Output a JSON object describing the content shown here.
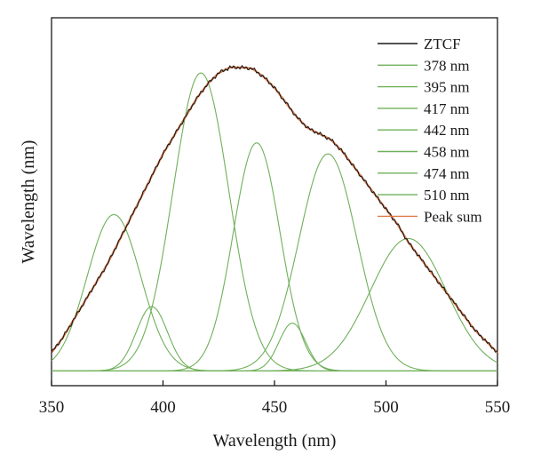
{
  "chart_data": {
    "type": "line",
    "title": "",
    "xlabel": "Wavelength (nm)",
    "ylabel": "Wavelength (nm)",
    "xlim": [
      350,
      550
    ],
    "ylim": [
      0,
      1.0
    ],
    "x_ticks": [
      350,
      400,
      450,
      500,
      550
    ],
    "x_tick_labels": [
      "350",
      "400",
      "450",
      "500",
      "550"
    ],
    "y_tick_labels_shown": false,
    "grid": false,
    "legend_position": "top-right",
    "baseline": 0.04,
    "measured": {
      "name": "ZTCF",
      "color": "#1a1a1a",
      "x": [
        350,
        355,
        360,
        365,
        370,
        375,
        380,
        385,
        390,
        395,
        400,
        405,
        410,
        415,
        420,
        425,
        430,
        435,
        440,
        445,
        450,
        455,
        460,
        465,
        470,
        475,
        480,
        485,
        490,
        495,
        500,
        505,
        510,
        515,
        520,
        525,
        530,
        535,
        540,
        545,
        550
      ],
      "y": [
        0.09,
        0.13,
        0.18,
        0.23,
        0.28,
        0.33,
        0.39,
        0.45,
        0.51,
        0.57,
        0.63,
        0.68,
        0.73,
        0.78,
        0.82,
        0.85,
        0.865,
        0.865,
        0.862,
        0.84,
        0.81,
        0.77,
        0.73,
        0.7,
        0.685,
        0.67,
        0.64,
        0.6,
        0.56,
        0.52,
        0.48,
        0.44,
        0.39,
        0.35,
        0.31,
        0.27,
        0.23,
        0.19,
        0.15,
        0.12,
        0.09
      ]
    },
    "peak_sum": {
      "name": "Peak sum",
      "color": "#e07b4a"
    },
    "peaks": [
      {
        "name": "378 nm",
        "center": 378,
        "height": 0.425,
        "width": 12,
        "color": "#6fb05a"
      },
      {
        "name": "395 nm",
        "center": 395,
        "height": 0.175,
        "width": 7,
        "color": "#6fb05a"
      },
      {
        "name": "417 nm",
        "center": 417,
        "height": 0.81,
        "width": 12.5,
        "color": "#6fb05a"
      },
      {
        "name": "442 nm",
        "center": 442,
        "height": 0.62,
        "width": 10.5,
        "color": "#6fb05a"
      },
      {
        "name": "458 nm",
        "center": 458,
        "height": 0.13,
        "width": 6,
        "color": "#6fb05a"
      },
      {
        "name": "474 nm",
        "center": 474,
        "height": 0.59,
        "width": 13,
        "color": "#6fb05a"
      },
      {
        "name": "510 nm",
        "center": 510,
        "height": 0.36,
        "width": 17,
        "color": "#6fb05a"
      }
    ],
    "legend": [
      "ZTCF",
      "378 nm",
      "395 nm",
      "417 nm",
      "442 nm",
      "458 nm",
      "474 nm",
      "510 nm",
      "Peak sum"
    ]
  }
}
